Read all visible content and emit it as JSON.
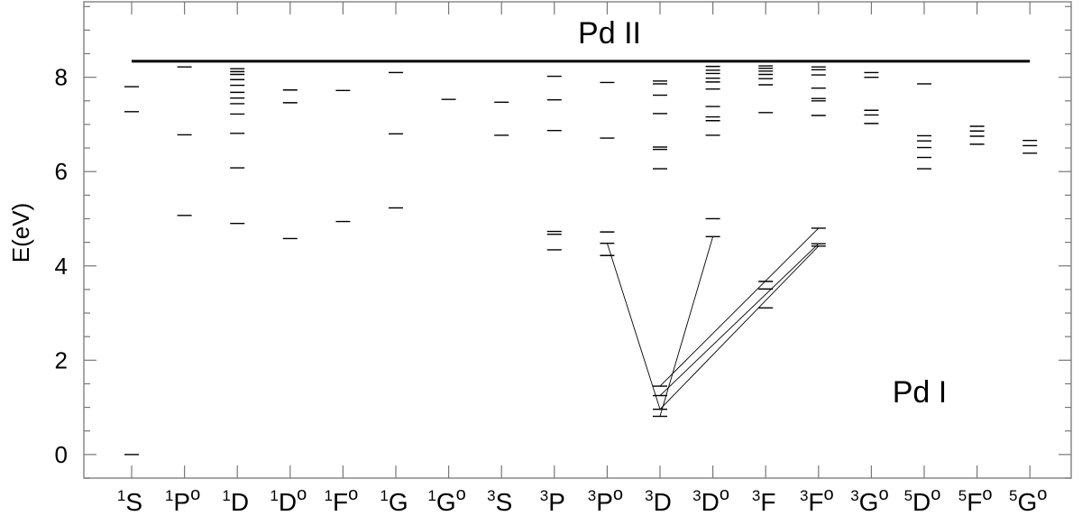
{
  "chart_data": {
    "type": "level-diagram",
    "title": "",
    "xlabel": "",
    "ylabel": "E(eV)",
    "ylim": [
      -0.5,
      9.6
    ],
    "yticks": [
      "0",
      "2",
      "4",
      "6",
      "8"
    ],
    "ytick_values": [
      0,
      2,
      4,
      6,
      8
    ],
    "ionization_limit": 8.34,
    "annotations": {
      "upper": "Pd II",
      "lower": "Pd I"
    },
    "terms": [
      {
        "mult": "1",
        "L": "S",
        "parity": "",
        "levels": [
          0,
          7.27,
          7.8
        ]
      },
      {
        "mult": "1",
        "L": "P",
        "parity": "o",
        "levels": [
          5.07,
          6.78,
          8.22
        ]
      },
      {
        "mult": "1",
        "L": "D",
        "parity": "",
        "levels": [
          4.9,
          6.08,
          6.81,
          7.22,
          7.44,
          7.56,
          7.68,
          7.83,
          7.95,
          8.06,
          8.12,
          8.18
        ]
      },
      {
        "mult": "1",
        "L": "D",
        "parity": "o",
        "levels": [
          4.58,
          7.46,
          7.73
        ]
      },
      {
        "mult": "1",
        "L": "F",
        "parity": "o",
        "levels": [
          4.94,
          7.72
        ]
      },
      {
        "mult": "1",
        "L": "G",
        "parity": "",
        "levels": [
          5.23,
          6.8,
          8.1
        ]
      },
      {
        "mult": "1",
        "L": "G",
        "parity": "o",
        "levels": [
          7.53
        ]
      },
      {
        "mult": "3",
        "L": "S",
        "parity": "",
        "levels": [
          6.77,
          7.47
        ]
      },
      {
        "mult": "3",
        "L": "P",
        "parity": "",
        "levels": [
          4.34,
          4.67,
          4.73,
          6.87,
          7.52,
          8.02
        ]
      },
      {
        "mult": "3",
        "L": "P",
        "parity": "o",
        "levels": [
          4.22,
          4.48,
          4.72,
          6.71,
          7.89
        ]
      },
      {
        "mult": "3",
        "L": "D",
        "parity": "",
        "levels": [
          0.81,
          0.96,
          1.25,
          1.45,
          6.06,
          6.47,
          6.52,
          7.23,
          7.62,
          7.86,
          7.92
        ]
      },
      {
        "mult": "3",
        "L": "D",
        "parity": "o",
        "levels": [
          4.62,
          5.0,
          6.77,
          7.08,
          7.16,
          7.38,
          7.75,
          7.9,
          7.98,
          8.08,
          8.15,
          8.23
        ]
      },
      {
        "mult": "3",
        "L": "F",
        "parity": "",
        "levels": [
          3.11,
          3.51,
          3.67,
          7.25,
          7.84,
          7.97,
          8.06,
          8.13,
          8.19,
          8.24
        ]
      },
      {
        "mult": "3",
        "L": "F",
        "parity": "o",
        "levels": [
          4.42,
          4.47,
          4.8,
          7.19,
          7.5,
          7.55,
          7.77,
          8.05,
          8.16,
          8.22
        ]
      },
      {
        "mult": "3",
        "L": "G",
        "parity": "o",
        "levels": [
          7.02,
          7.2,
          7.3,
          8.0,
          8.1
        ]
      },
      {
        "mult": "5",
        "L": "D",
        "parity": "o",
        "levels": [
          6.06,
          6.3,
          6.51,
          6.65,
          6.76,
          7.86
        ]
      },
      {
        "mult": "5",
        "L": "F",
        "parity": "o",
        "levels": [
          6.58,
          6.75,
          6.86,
          6.96
        ]
      },
      {
        "mult": "5",
        "L": "G",
        "parity": "o",
        "levels": [
          6.39,
          6.55,
          6.66
        ]
      }
    ],
    "transitions": [
      {
        "from_term": 9,
        "from_E": 4.48,
        "to_term": 10,
        "to_E": 0.96
      },
      {
        "from_term": 11,
        "from_E": 4.62,
        "to_term": 10,
        "to_E": 0.81
      },
      {
        "from_term": 13,
        "from_E": 4.8,
        "to_term": 10,
        "to_E": 1.45
      },
      {
        "from_term": 13,
        "from_E": 4.47,
        "to_term": 10,
        "to_E": 1.25
      },
      {
        "from_term": 13,
        "from_E": 4.42,
        "to_term": 10,
        "to_E": 0.96
      }
    ],
    "grid": false,
    "legend": "none"
  }
}
